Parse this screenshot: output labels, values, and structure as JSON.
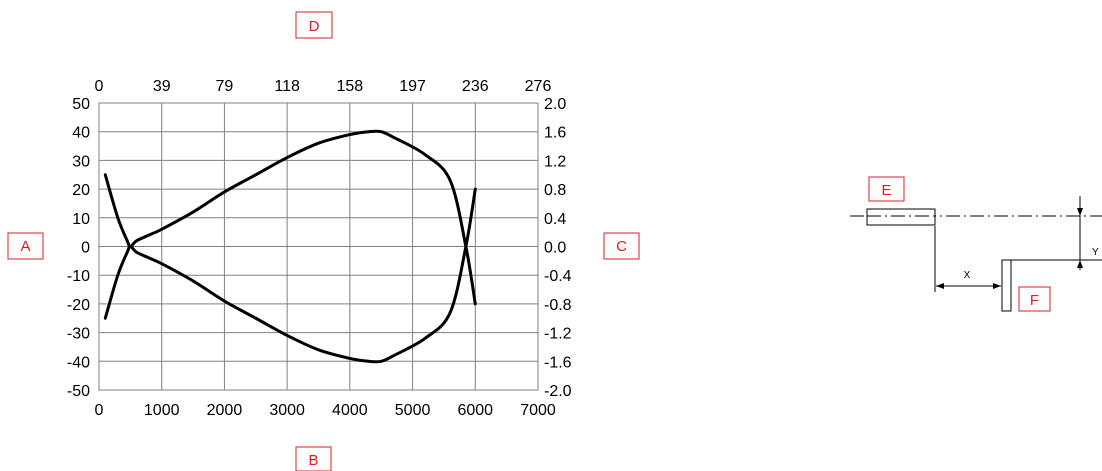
{
  "chart_data": {
    "type": "line",
    "x_bottom": {
      "min": 0,
      "max": 7000,
      "ticks": [
        "0",
        "1000",
        "2000",
        "3000",
        "4000",
        "5000",
        "6000",
        "7000"
      ]
    },
    "x_top": {
      "ticks": [
        "0",
        "39",
        "79",
        "118",
        "158",
        "197",
        "236",
        "276"
      ]
    },
    "y_left": {
      "min": -50,
      "max": 50,
      "ticks": [
        "50",
        "40",
        "30",
        "20",
        "10",
        "0",
        "-10",
        "-20",
        "-30",
        "-40",
        "-50"
      ]
    },
    "y_right": {
      "min": -2.0,
      "max": 2.0,
      "ticks": [
        "2.0",
        "1.6",
        "1.2",
        "0.8",
        "0.4",
        "0.0",
        "-0.4",
        "-0.8",
        "-1.2",
        "-1.6",
        "-2.0"
      ]
    },
    "grid": true,
    "series": [
      {
        "x": [
          100,
          300,
          450,
          500,
          600,
          800,
          1000,
          1500,
          2000,
          2500,
          3000,
          3500,
          4000,
          4300,
          4500,
          4700,
          5200,
          5600,
          5850,
          6000
        ],
        "y": [
          25,
          10,
          2,
          0,
          2,
          4,
          6,
          12,
          19,
          25,
          31,
          36,
          39,
          40,
          40,
          38,
          32,
          23,
          0,
          -20
        ]
      },
      {
        "x": [
          100,
          300,
          450,
          500,
          600,
          800,
          1000,
          1500,
          2000,
          2500,
          3000,
          3500,
          4000,
          4300,
          4500,
          4700,
          5200,
          5600,
          5850,
          6000
        ],
        "y": [
          -25,
          -10,
          -2,
          0,
          -2,
          -4,
          -6,
          -12,
          -19,
          -25,
          -31,
          -36,
          -39,
          -40,
          -40,
          -38,
          -32,
          -23,
          0,
          20
        ]
      }
    ]
  },
  "labels": {
    "A": "A",
    "B": "B",
    "C": "C",
    "D": "D",
    "E": "E",
    "F": "F"
  },
  "diagram": {
    "x_label": "X",
    "y_label": "Y"
  },
  "colors": {
    "label_box_border": "#d42020",
    "label_text": "#d42020",
    "curve": "#000000",
    "grid": "#808080"
  }
}
